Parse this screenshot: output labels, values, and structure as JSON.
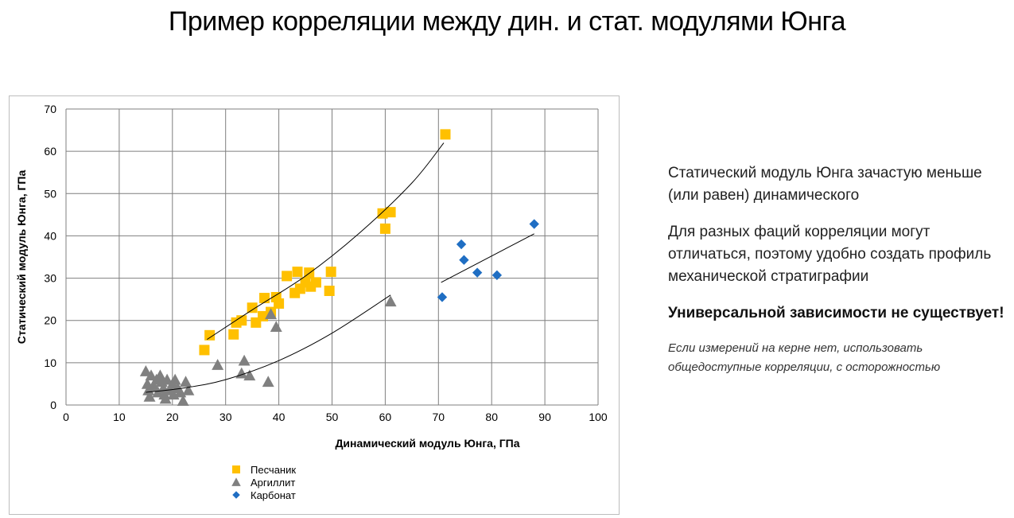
{
  "slide": {
    "title": "Пример корреляции между дин. и стат. модулями Юнга"
  },
  "notes": [
    "Статический модуль Юнга зачастую меньше (или равен) динамического",
    "Для разных фаций корреляции могут отличаться, поэтому удобно создать профиль механической стратиграфии",
    "Универсальной зависимости не существует!",
    "Если измерений на керне нет, использовать общедоступные корреляции, с осторожностью"
  ],
  "chart_data": {
    "type": "scatter",
    "xlabel": "Динамический модуль Юнга, ГПа",
    "ylabel": "Статический модуль Юнга, ГПа",
    "xlim": [
      0,
      100
    ],
    "ylim": [
      0,
      70
    ],
    "xticks": [
      0,
      10,
      20,
      30,
      40,
      50,
      60,
      70,
      80,
      90,
      100
    ],
    "yticks": [
      0,
      10,
      20,
      30,
      40,
      50,
      60,
      70
    ],
    "grid": true,
    "legend_position": "bottom-left",
    "series": [
      {
        "name": "Песчаник",
        "marker": "square",
        "color": "#FFC000",
        "points": [
          [
            26,
            13
          ],
          [
            27,
            16.5
          ],
          [
            31.5,
            16.7
          ],
          [
            32,
            19.5
          ],
          [
            33,
            20
          ],
          [
            35,
            23
          ],
          [
            35.7,
            19.5
          ],
          [
            37,
            21
          ],
          [
            37.3,
            25.3
          ],
          [
            38.5,
            22
          ],
          [
            39.5,
            25.5
          ],
          [
            40,
            24
          ],
          [
            41.5,
            30.5
          ],
          [
            43,
            26.5
          ],
          [
            43.5,
            31.5
          ],
          [
            44,
            27.5
          ],
          [
            45,
            29
          ],
          [
            45.7,
            31.3
          ],
          [
            46,
            28
          ],
          [
            47,
            29
          ],
          [
            49.5,
            27
          ],
          [
            49.8,
            31.5
          ],
          [
            59.5,
            45.3
          ],
          [
            60,
            41.7
          ],
          [
            61,
            45.6
          ],
          [
            71.3,
            64
          ]
        ],
        "trend": [
          [
            26.5,
            15.5
          ],
          [
            35,
            22.5
          ],
          [
            45,
            30.5
          ],
          [
            55,
            40.5
          ],
          [
            65,
            52.5
          ],
          [
            71,
            62
          ]
        ]
      },
      {
        "name": "Аргиллит",
        "marker": "triangle",
        "color": "#808080",
        "points": [
          [
            15,
            8
          ],
          [
            15.3,
            5
          ],
          [
            15.5,
            3.5
          ],
          [
            15.7,
            2
          ],
          [
            16,
            7
          ],
          [
            16.5,
            4.5
          ],
          [
            17,
            6
          ],
          [
            17.3,
            3
          ],
          [
            17.7,
            7
          ],
          [
            18,
            5.5
          ],
          [
            18.3,
            4
          ],
          [
            18.5,
            2.5
          ],
          [
            18.7,
            1.5
          ],
          [
            19,
            6
          ],
          [
            19.5,
            3.5
          ],
          [
            20,
            5
          ],
          [
            20.2,
            2.5
          ],
          [
            20.5,
            6
          ],
          [
            21,
            4
          ],
          [
            21.5,
            3
          ],
          [
            22,
            1
          ],
          [
            22.5,
            5.5
          ],
          [
            23,
            3.5
          ],
          [
            28.5,
            9.5
          ],
          [
            33,
            7.5
          ],
          [
            33.5,
            10.5
          ],
          [
            34.5,
            7
          ],
          [
            38,
            5.5
          ],
          [
            38.5,
            21.5
          ],
          [
            39.5,
            18.5
          ],
          [
            61,
            24.5
          ]
        ],
        "trend": [
          [
            15,
            3
          ],
          [
            22,
            4
          ],
          [
            30,
            6
          ],
          [
            40,
            10.5
          ],
          [
            50,
            17
          ],
          [
            61,
            26
          ]
        ]
      },
      {
        "name": "Карбонат",
        "marker": "diamond",
        "color": "#1F6EC3",
        "points": [
          [
            70.7,
            25.5
          ],
          [
            74.3,
            38
          ],
          [
            74.8,
            34.3
          ],
          [
            77.3,
            31.3
          ],
          [
            81,
            30.7
          ],
          [
            88,
            42.8
          ]
        ],
        "trend": [
          [
            70.5,
            29
          ],
          [
            88,
            40.5
          ]
        ]
      }
    ]
  }
}
